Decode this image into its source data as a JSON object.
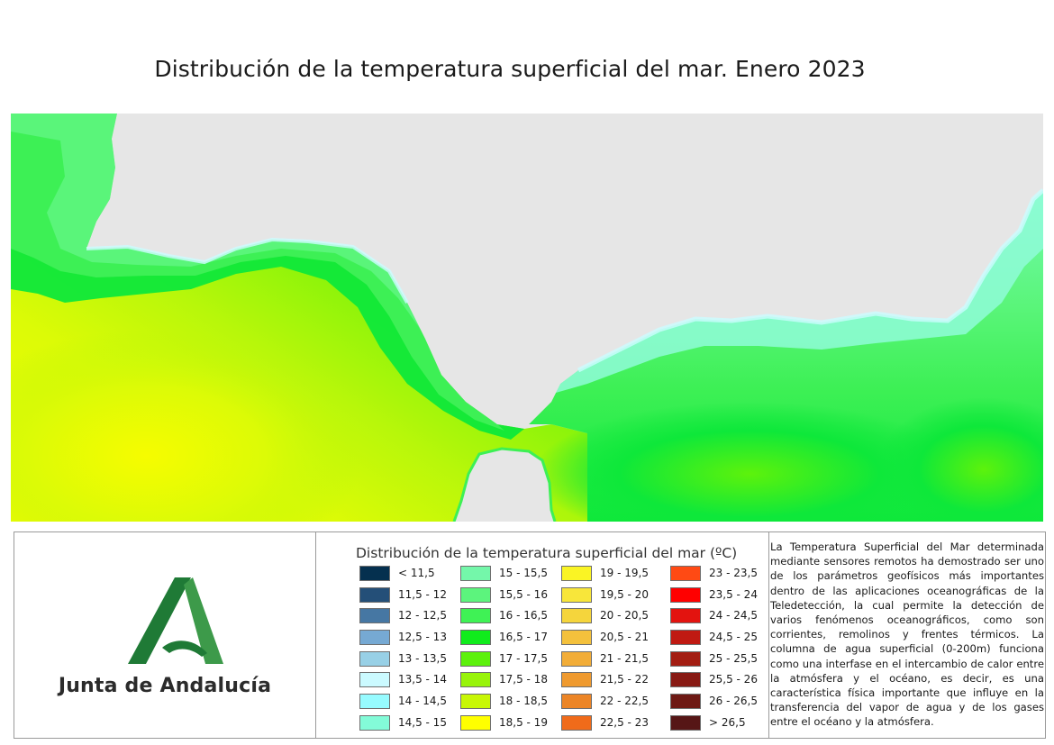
{
  "title": "Distribución de la temperatura superficial del mar. Enero 2023",
  "map": {
    "land_color": "#e6e6e6",
    "palette": {
      "t14": "#ccfcff",
      "t14_5": "#8ffbd8",
      "t15": "#74fbb0",
      "t15_5": "#5af57a",
      "t16": "#3df055",
      "t16_5": "#0ee83a",
      "t17": "#5df20c",
      "t17_5": "#8ef40a",
      "t18": "#b8f70a",
      "t18_5": "#dcfb06",
      "t19": "#f6fc00"
    }
  },
  "legend": {
    "title": "Distribución de la temperatura superficial del mar (ºC)",
    "items": [
      {
        "label": "< 11,5",
        "color": "#05304f"
      },
      {
        "label": "11,5 - 12",
        "color": "#244f78"
      },
      {
        "label": "12 - 12,5",
        "color": "#4677a3"
      },
      {
        "label": "12,5 - 13",
        "color": "#76a9d3"
      },
      {
        "label": "13 - 13,5",
        "color": "#98d0e6"
      },
      {
        "label": "13,5 - 14",
        "color": "#cbfaff"
      },
      {
        "label": "14 - 14,5",
        "color": "#97fbff"
      },
      {
        "label": "14,5 - 15",
        "color": "#83fbd8"
      },
      {
        "label": "15 - 15,5",
        "color": "#74f7aa"
      },
      {
        "label": "15,5 - 16",
        "color": "#5cf47d"
      },
      {
        "label": "16 - 16,5",
        "color": "#3ff255"
      },
      {
        "label": "16,5 - 17",
        "color": "#10ec1c"
      },
      {
        "label": "17 - 17,5",
        "color": "#5df10c"
      },
      {
        "label": "17,5 - 18",
        "color": "#98f40a"
      },
      {
        "label": "18 - 18,5",
        "color": "#c8f705"
      },
      {
        "label": "18,5 - 19",
        "color": "#ffff00"
      },
      {
        "label": "19 - 19,5",
        "color": "#faf424"
      },
      {
        "label": "19,5 - 20",
        "color": "#f8e63a"
      },
      {
        "label": "20 - 20,5",
        "color": "#f5d53c"
      },
      {
        "label": "20,5 - 21",
        "color": "#f4c13c"
      },
      {
        "label": "21 - 21,5",
        "color": "#f2ad38"
      },
      {
        "label": "21,5 - 22",
        "color": "#ef9a2f"
      },
      {
        "label": "22 - 22,5",
        "color": "#ec8526"
      },
      {
        "label": "22,5 - 23",
        "color": "#f06b1a"
      },
      {
        "label": "23 - 23,5",
        "color": "#ff4a14"
      },
      {
        "label": "23,5 - 24",
        "color": "#ff0000"
      },
      {
        "label": "24 - 24,5",
        "color": "#e3130f"
      },
      {
        "label": "24,5 - 25",
        "color": "#c01a12"
      },
      {
        "label": "25 - 25,5",
        "color": "#a31d12"
      },
      {
        "label": "25,5 - 26",
        "color": "#881a14"
      },
      {
        "label": "26 - 26,5",
        "color": "#6e1914"
      },
      {
        "label": "> 26,5",
        "color": "#561616"
      }
    ]
  },
  "logo": {
    "text": "Junta de Andalucía",
    "color_dark": "#1f7a36",
    "color_light": "#3d9a4a"
  },
  "description": "La Temperatura Superficial del Mar determinada mediante sensores remotos ha demostrado ser uno de los parámetros geofísicos más importantes dentro de las aplicaciones oceanográficas de la Teledetección, la cual permite la detección de varios fenómenos oceanográficos, como son corrientes, remolinos y frentes térmicos. La columna de agua superficial (0-200m) funciona como una interfase en el intercambio de calor entre la atmósfera y el océano, es decir, es una característica física importante que influye en la transferencia del vapor de agua y de los gases entre el océano y la atmósfera."
}
